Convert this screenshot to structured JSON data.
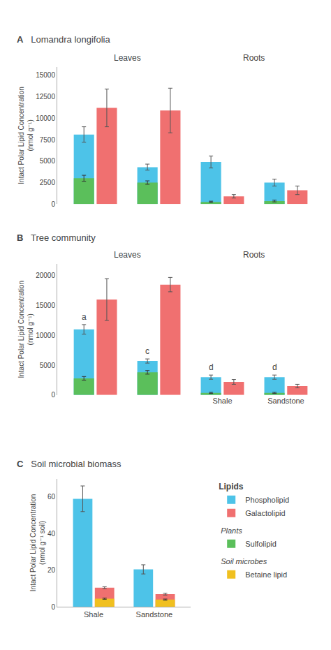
{
  "chart_data": [
    {
      "type": "bar",
      "title": "Lomandra longifolia",
      "categories": [
        null,
        null,
        null,
        null
      ],
      "tick_labels": "y",
      "y_label": "Intact Polar Lipid Concentration\n(nmol g⁻¹)",
      "ylim": [
        0,
        16000
      ],
      "yticks": [
        0,
        2500,
        5000,
        7500,
        10000,
        12500,
        15000
      ],
      "grid": false,
      "series": [
        {
          "name": "Phospholipid",
          "color": "#4DC3E8",
          "values": [
            8100,
            4300,
            4900,
            2500
          ],
          "errors": [
            900,
            350,
            700,
            400
          ]
        },
        {
          "name": "Galactolipid",
          "color": "#F07070",
          "values": [
            11200,
            10900,
            900,
            1600
          ],
          "errors": [
            2200,
            2600,
            200,
            500
          ]
        },
        {
          "name": "Sulfolipid",
          "color": "#5BBF5B",
          "values": [
            3000,
            2500,
            250,
            350
          ],
          "errors": [
            350,
            200,
            80,
            100
          ],
          "over": "Phospholipid",
          "group": "Plants"
        }
      ],
      "annotations": [
        {
          "text": "A"
        },
        {
          "text": "Leaves",
          "x": 0.5
        },
        {
          "text": "Roots",
          "x": 2.5
        }
      ]
    },
    {
      "type": "bar",
      "title": "Tree community",
      "categories": [
        null,
        null,
        "Shale",
        "Sandstone"
      ],
      "y_label": "Intact Polar Lipid Concentration\n(nmol g⁻¹)",
      "ylim": [
        0,
        22000
      ],
      "yticks": [
        0,
        5000,
        10000,
        15000,
        20000
      ],
      "grid": false,
      "series": [
        {
          "name": "Phospholipid",
          "color": "#4DC3E8",
          "values": [
            11000,
            5700,
            3000,
            3000
          ],
          "errors": [
            800,
            350,
            350,
            350
          ]
        },
        {
          "name": "Galactolipid",
          "color": "#F07070",
          "values": [
            16000,
            18500,
            2200,
            1500
          ],
          "errors": [
            3500,
            1200,
            400,
            300
          ]
        },
        {
          "name": "Sulfolipid",
          "color": "#5BBF5B",
          "values": [
            2800,
            3800,
            350,
            350
          ],
          "errors": [
            300,
            300,
            100,
            100
          ],
          "over": "Phospholipid",
          "group": "Plants"
        }
      ],
      "annotations": [
        {
          "text": "B"
        },
        {
          "text": "Leaves",
          "x": 0.5
        },
        {
          "text": "Roots",
          "x": 2.5
        },
        {
          "text": "a",
          "x": 0,
          "series": "Phospholipid"
        },
        {
          "text": "c",
          "x": 1,
          "series": "Phospholipid"
        },
        {
          "text": "d",
          "x": 2,
          "series": "Phospholipid"
        },
        {
          "text": "d",
          "x": 3,
          "series": "Phospholipid"
        }
      ]
    },
    {
      "type": "bar",
      "title": "Soil microbial biomass",
      "categories": [
        "Shale",
        "Sandstone"
      ],
      "y_label": "Intact Polar Lipid Concentration\n(nmol g⁻¹ soil)",
      "ylim": [
        0,
        70
      ],
      "yticks": [
        0,
        20,
        40,
        60
      ],
      "grid": false,
      "legend_title": "Lipids",
      "series": [
        {
          "name": "Phospholipid",
          "color": "#4DC3E8",
          "values": [
            59,
            20.5
          ],
          "errors": [
            7,
            2.5
          ]
        },
        {
          "name": "Galactolipid",
          "color": "#F07070",
          "values": [
            10.5,
            7
          ],
          "errors": [
            0.5,
            0.5
          ]
        },
        {
          "name": "Betaine lipid",
          "color": "#F0C020",
          "values": [
            4.5,
            4
          ],
          "errors": [
            0.3,
            0.3
          ],
          "over": "Galactolipid",
          "group": "Soil microbes"
        }
      ],
      "annotations": [
        {
          "text": "C"
        }
      ]
    }
  ]
}
